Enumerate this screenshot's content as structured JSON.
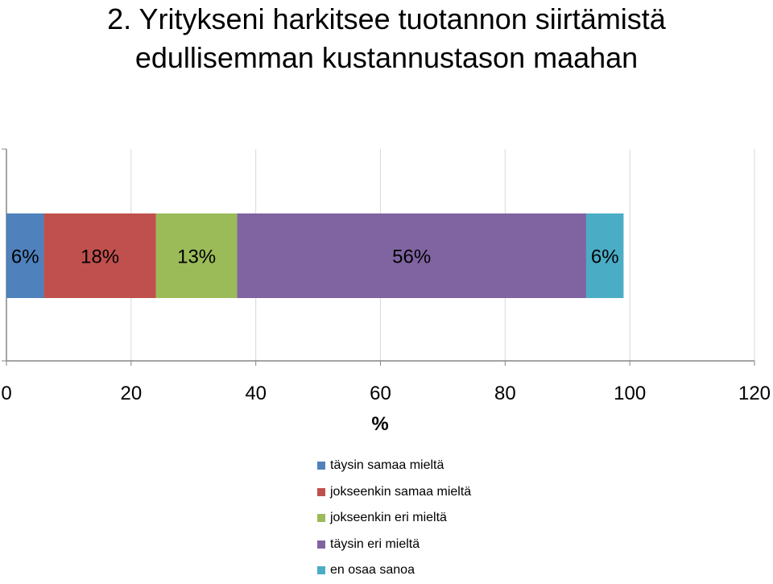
{
  "chart_data": {
    "type": "bar",
    "orientation": "horizontal",
    "stacked": true,
    "title": [
      "2. Yritykseni harkitsee tuotannon siirtämistä",
      "edullisemman kustannustason maahan"
    ],
    "xlabel": "%",
    "ylabel": "",
    "xlim": [
      0,
      120
    ],
    "xticks": [
      "0",
      "20",
      "40",
      "60",
      "80",
      "100",
      "120"
    ],
    "grid": "vertical",
    "legend_position": "bottom",
    "series": [
      {
        "name": "täysin samaa mieltä",
        "value": 6,
        "label": "6%",
        "color": "#4F81BD"
      },
      {
        "name": "jokseenkin samaa mieltä",
        "value": 18,
        "label": "18%",
        "color": "#C0504D"
      },
      {
        "name": "jokseenkin eri mieltä",
        "value": 13,
        "label": "13%",
        "color": "#9BBB59"
      },
      {
        "name": "täysin eri mieltä",
        "value": 56,
        "label": "56%",
        "color": "#8064A2"
      },
      {
        "name": "en osaa sanoa",
        "value": 6,
        "label": "6%",
        "color": "#4BACC6"
      }
    ]
  }
}
